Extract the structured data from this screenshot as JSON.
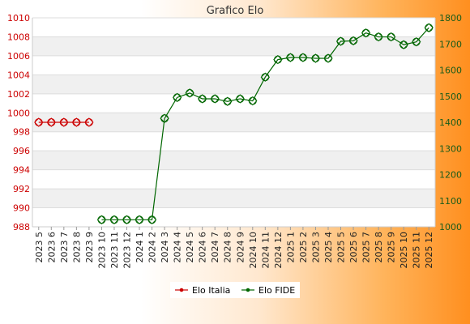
{
  "chart_data": {
    "type": "line",
    "title": "Grafico Elo",
    "categories": [
      "2023 5",
      "2023 6",
      "2023 7",
      "2023 8",
      "2023 9",
      "2023 10",
      "2023 11",
      "2023 12",
      "2024 1",
      "2024 2",
      "2024 3",
      "2024 4",
      "2024 5",
      "2024 6",
      "2024 7",
      "2024 8",
      "2024 9",
      "2024 10",
      "2024 11",
      "2024 12",
      "2025 1",
      "2025 2",
      "2025 3",
      "2025 4",
      "2025 5",
      "2025 6",
      "2025 7",
      "2025 8",
      "2025 9",
      "2025 10",
      "2025 11",
      "2025 12"
    ],
    "left_axis": {
      "min": 988,
      "max": 1010,
      "ticks": [
        988,
        990,
        992,
        994,
        996,
        998,
        1000,
        1002,
        1004,
        1006,
        1008,
        1010
      ],
      "color": "#cc0000"
    },
    "right_axis": {
      "min": 1000,
      "max": 1800,
      "ticks": [
        1000,
        1100,
        1200,
        1300,
        1400,
        1500,
        1600,
        1700,
        1800
      ],
      "color": "#1a5c1a"
    },
    "series": [
      {
        "name": "Elo Italia",
        "axis": "left",
        "color": "#cc0000",
        "values": [
          999,
          999,
          999,
          999,
          999,
          null,
          null,
          null,
          null,
          null,
          null,
          null,
          null,
          null,
          null,
          null,
          null,
          null,
          null,
          null,
          null,
          null,
          null,
          null,
          null,
          null,
          null,
          null,
          null,
          null,
          null,
          null
        ]
      },
      {
        "name": "Elo FIDE",
        "axis": "right",
        "color": "#006600",
        "values": [
          null,
          null,
          null,
          null,
          null,
          1027,
          1027,
          1027,
          1027,
          1027,
          1415,
          1495,
          1512,
          1490,
          1490,
          1480,
          1490,
          1482,
          1573,
          1640,
          1648,
          1648,
          1645,
          1645,
          1710,
          1712,
          1742,
          1727,
          1727,
          1697,
          1708,
          1762
        ]
      }
    ],
    "legend_position": "bottom",
    "grid": "horizontal-bands"
  }
}
